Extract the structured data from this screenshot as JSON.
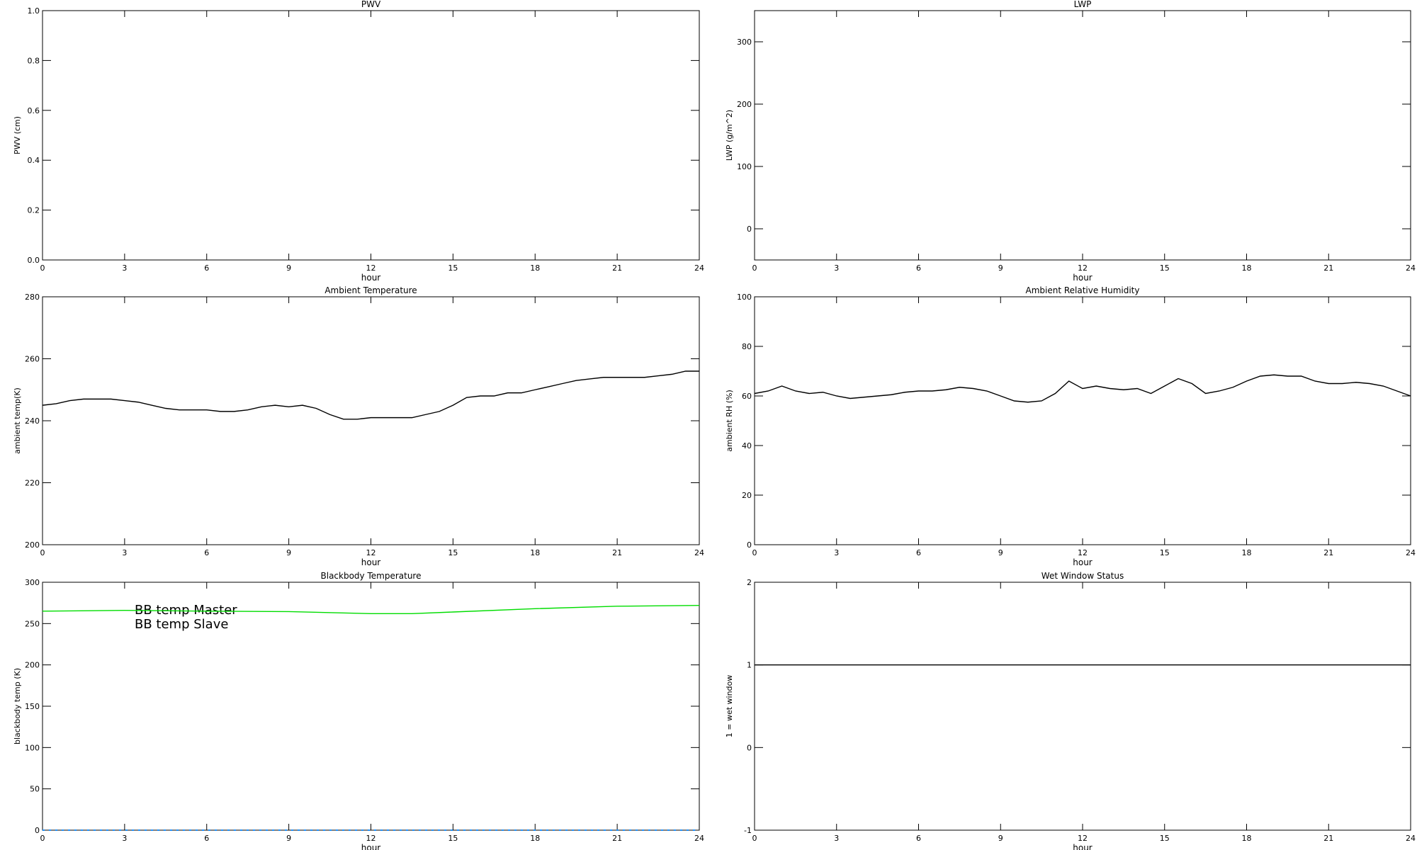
{
  "chart_data": [
    {
      "type": "line",
      "title": "PWV",
      "x_label": "hour",
      "y_label": "PWV (cm)",
      "xlim": [
        0,
        24
      ],
      "xticks": [
        0,
        3,
        6,
        9,
        12,
        15,
        18,
        21,
        24
      ],
      "ylim": [
        0,
        1
      ],
      "yticks": [
        {
          "value": 0,
          "label": "0.0"
        },
        {
          "value": 0.2,
          "label": "0.2"
        },
        {
          "value": 0.4,
          "label": "0.4"
        },
        {
          "value": 0.6,
          "label": "0.6"
        },
        {
          "value": 0.8,
          "label": "0.8"
        },
        {
          "value": 1,
          "label": "1.0"
        }
      ],
      "x": [],
      "series": []
    },
    {
      "type": "line",
      "title": "LWP",
      "x_label": "hour",
      "y_label": "LWP (g/m^2)",
      "xlim": [
        0,
        24
      ],
      "xticks": [
        0,
        3,
        6,
        9,
        12,
        15,
        18,
        21,
        24
      ],
      "ylim": [
        -50,
        350
      ],
      "yticks": [
        0,
        100,
        200,
        300
      ],
      "x": [],
      "series": []
    },
    {
      "type": "line",
      "title": "Ambient Temperature",
      "x_label": "hour",
      "y_label": "ambient temp(K)",
      "xlim": [
        0,
        24
      ],
      "xticks": [
        0,
        3,
        6,
        9,
        12,
        15,
        18,
        21,
        24
      ],
      "ylim": [
        200,
        280
      ],
      "yticks": [
        200,
        220,
        240,
        260,
        280
      ],
      "x": [
        0,
        0.5,
        1,
        1.5,
        2,
        2.5,
        3,
        3.5,
        4,
        4.5,
        5,
        5.5,
        6,
        6.5,
        7,
        7.5,
        8,
        8.5,
        9,
        9.5,
        10,
        10.5,
        11,
        11.5,
        12,
        12.5,
        13,
        13.5,
        14,
        14.5,
        15,
        15.5,
        16,
        16.5,
        17,
        17.5,
        18,
        18.5,
        19,
        19.5,
        20,
        20.5,
        21,
        21.5,
        22,
        22.5,
        23,
        23.5,
        24
      ],
      "series": [
        {
          "color": "#000000",
          "values": [
            245,
            245.5,
            246.5,
            247,
            247,
            247,
            246.5,
            246,
            245,
            244,
            243.5,
            243.5,
            243.5,
            243,
            243,
            243.5,
            244.5,
            245,
            244.5,
            245,
            244,
            242,
            240.5,
            240.5,
            241,
            241,
            241,
            241,
            242,
            243,
            245,
            247.5,
            248,
            248,
            249,
            249,
            250,
            251,
            252,
            253,
            253.5,
            254,
            254,
            254,
            254,
            254.5,
            255,
            256,
            256
          ]
        }
      ]
    },
    {
      "type": "line",
      "title": "Ambient Relative Humidity",
      "x_label": "hour",
      "y_label": "ambient RH (%)",
      "xlim": [
        0,
        24
      ],
      "xticks": [
        0,
        3,
        6,
        9,
        12,
        15,
        18,
        21,
        24
      ],
      "ylim": [
        0,
        100
      ],
      "yticks": [
        0,
        20,
        40,
        60,
        80,
        100
      ],
      "x": [
        0,
        0.5,
        1,
        1.5,
        2,
        2.5,
        3,
        3.5,
        4,
        4.5,
        5,
        5.5,
        6,
        6.5,
        7,
        7.5,
        8,
        8.5,
        9,
        9.5,
        10,
        10.5,
        11,
        11.5,
        12,
        12.5,
        13,
        13.5,
        14,
        14.5,
        15,
        15.5,
        16,
        16.5,
        17,
        17.5,
        18,
        18.5,
        19,
        19.5,
        20,
        20.5,
        21,
        21.5,
        22,
        22.5,
        23,
        23.5,
        24
      ],
      "series": [
        {
          "color": "#000000",
          "values": [
            61,
            62,
            64,
            62,
            61,
            61.5,
            60,
            59,
            59.5,
            60,
            60.5,
            61.5,
            62,
            62,
            62.5,
            63.5,
            63,
            62,
            60,
            58,
            57.5,
            58,
            61,
            66,
            63,
            64,
            63,
            62.5,
            63,
            61,
            64,
            67,
            65,
            61,
            62,
            63.5,
            66,
            68,
            68.5,
            68,
            68,
            66,
            65,
            65,
            65.5,
            65,
            64,
            62,
            60
          ]
        }
      ]
    },
    {
      "type": "line",
      "title": "Blackbody Temperature",
      "x_label": "hour",
      "y_label": "blackbody temp (K)",
      "xlim": [
        0,
        24
      ],
      "xticks": [
        0,
        3,
        6,
        9,
        12,
        15,
        18,
        21,
        24
      ],
      "ylim": [
        0,
        300
      ],
      "yticks": [
        0,
        50,
        100,
        150,
        200,
        250,
        300
      ],
      "legend": "upper left",
      "x": [
        0,
        3,
        6,
        9,
        12,
        13.5,
        15,
        18,
        21,
        24
      ],
      "series": [
        {
          "name": "BB temp Master",
          "color": "#1e90ff",
          "values": [
            0,
            0,
            0,
            0,
            0,
            0,
            0,
            0,
            0,
            0
          ]
        },
        {
          "name": "BB temp Slave",
          "color": "#00dd00",
          "values": [
            265,
            266,
            265,
            264.5,
            262,
            262,
            264,
            268,
            271,
            272
          ]
        }
      ]
    },
    {
      "type": "line",
      "title": "Wet Window Status",
      "x_label": "hour",
      "y_label": "1 = wet window",
      "xlim": [
        0,
        24
      ],
      "xticks": [
        0,
        3,
        6,
        9,
        12,
        15,
        18,
        21,
        24
      ],
      "ylim": [
        -1,
        2
      ],
      "yticks": [
        -1,
        0,
        1,
        2
      ],
      "x": [
        0,
        24
      ],
      "series": [
        {
          "color": "#000000",
          "values": [
            1,
            1
          ]
        }
      ]
    }
  ]
}
